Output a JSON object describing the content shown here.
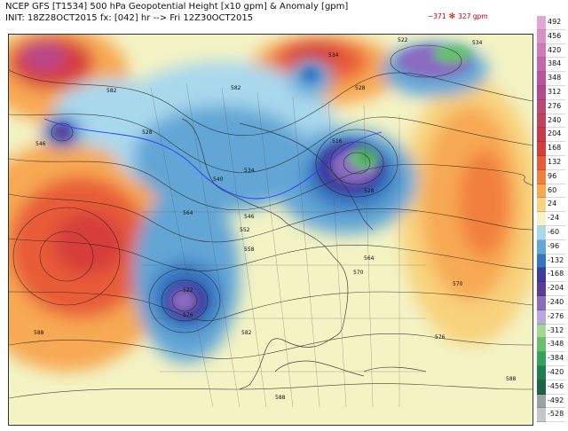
{
  "header": {
    "title": "NCEP GFS [T1534] 500 hPa Geopotential Height [x10 gpm] & Anomaly [gpm]",
    "init": "INIT: 18Z28OCT2015 fx: [042] hr --> Fri 12Z30OCT2015"
  },
  "range": {
    "min": "−371",
    "symbol": "✻",
    "max": "327 gpm"
  },
  "colorbar": [
    {
      "label": "492",
      "color": "#e2a6d4"
    },
    {
      "label": "456",
      "color": "#d990c6"
    },
    {
      "label": "420",
      "color": "#d07ab9"
    },
    {
      "label": "384",
      "color": "#c664ac"
    },
    {
      "label": "348",
      "color": "#bd529c"
    },
    {
      "label": "312",
      "color": "#b7478c"
    },
    {
      "label": "276",
      "color": "#b94a74"
    },
    {
      "label": "240",
      "color": "#c0435a"
    },
    {
      "label": "204",
      "color": "#c8384a"
    },
    {
      "label": "168",
      "color": "#d63d3a"
    },
    {
      "label": "132",
      "color": "#e85b38"
    },
    {
      "label": "96",
      "color": "#f17f3e"
    },
    {
      "label": "60",
      "color": "#f7a952"
    },
    {
      "label": "24",
      "color": "#f8d27c"
    },
    {
      "label": "-24",
      "color": "#f4f3c7"
    },
    {
      "label": "-60",
      "color": "#a8d8ec"
    },
    {
      "label": "-96",
      "color": "#62a6d6"
    },
    {
      "label": "-132",
      "color": "#3574c0"
    },
    {
      "label": "-168",
      "color": "#3b3d9e"
    },
    {
      "label": "-204",
      "color": "#5a3c9d"
    },
    {
      "label": "-240",
      "color": "#8a6cc0"
    },
    {
      "label": "-276",
      "color": "#b8a8dc"
    },
    {
      "label": "-312",
      "color": "#a3d98f"
    },
    {
      "label": "-348",
      "color": "#67c06a"
    },
    {
      "label": "-384",
      "color": "#35a25a"
    },
    {
      "label": "-420",
      "color": "#1f7f4d"
    },
    {
      "label": "-456",
      "color": "#1c6443"
    },
    {
      "label": "-492",
      "color": "#9aa1a8"
    },
    {
      "label": "-528",
      "color": "#c3c7cc"
    }
  ],
  "contour_labels": [
    "582",
    "546",
    "528",
    "534",
    "522",
    "534",
    "528",
    "582",
    "516",
    "528",
    "540",
    "534",
    "546",
    "552",
    "558",
    "564",
    "570",
    "576",
    "582",
    "522",
    "564",
    "570",
    "576",
    "588",
    "588",
    "588"
  ]
}
